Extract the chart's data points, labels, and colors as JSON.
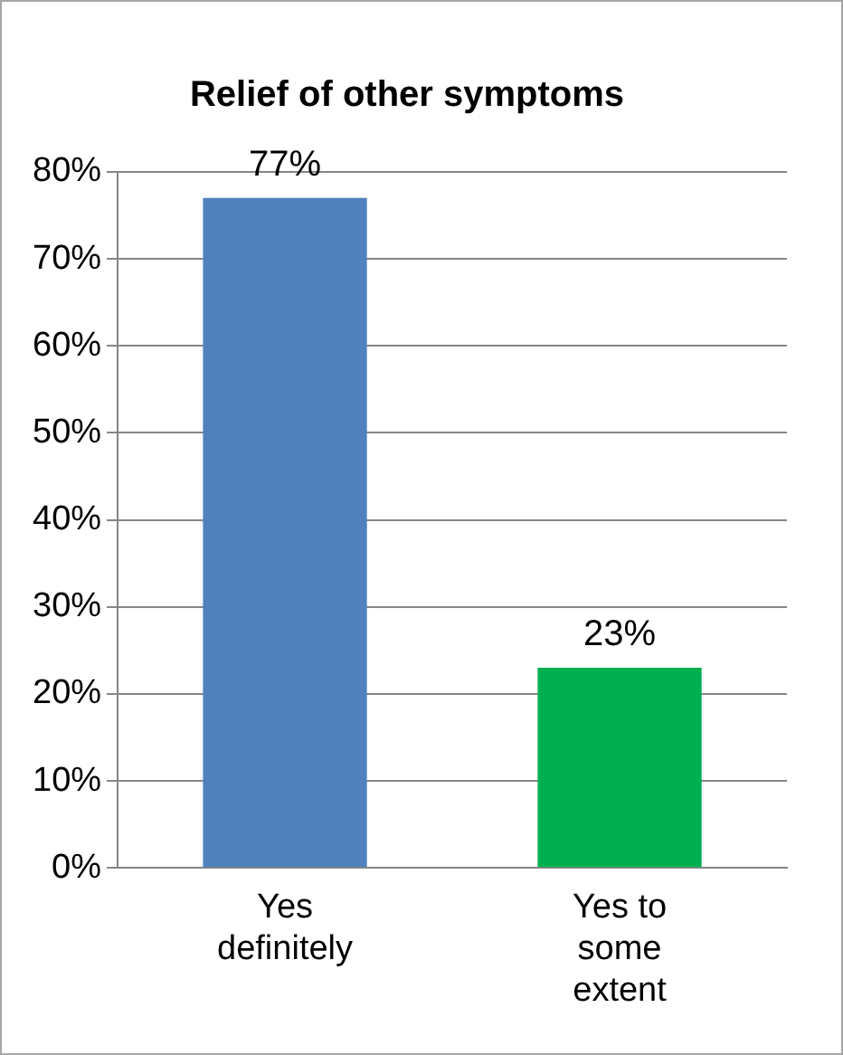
{
  "chart_data": {
    "type": "bar",
    "title": "Relief of other symptoms",
    "categories": [
      "Yes definitely",
      "Yes to some extent"
    ],
    "values": [
      77,
      23
    ],
    "colors": [
      "#4f81bd",
      "#00b050"
    ],
    "value_labels": [
      "77%",
      "23%"
    ],
    "ylim": [
      0,
      80
    ],
    "yticks": [
      {
        "value": 0,
        "label": "0%"
      },
      {
        "value": 10,
        "label": "10%"
      },
      {
        "value": 20,
        "label": "20%"
      },
      {
        "value": 30,
        "label": "30%"
      },
      {
        "value": 40,
        "label": "40%"
      },
      {
        "value": 50,
        "label": "50%"
      },
      {
        "value": 60,
        "label": "60%"
      },
      {
        "value": 70,
        "label": "70%"
      },
      {
        "value": 80,
        "label": "80%"
      }
    ],
    "grid": "y",
    "legend": false
  }
}
